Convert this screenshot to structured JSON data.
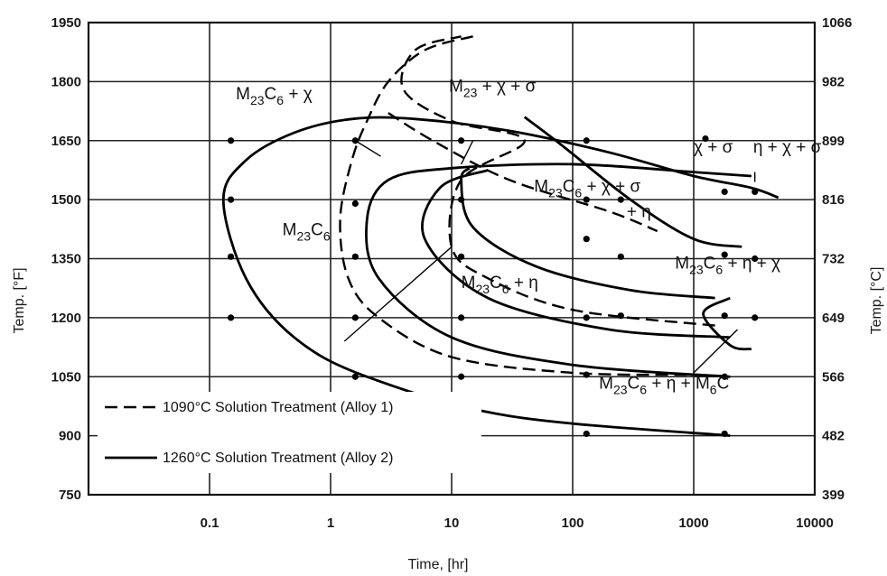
{
  "chart_data": {
    "type": "line",
    "xlabel": "Time, [hr]",
    "ylabel_left": "Temp. [°F]",
    "ylabel_right": "Temp. [°C]",
    "x_scale": "log",
    "xlim": [
      0.01,
      10000
    ],
    "ylim": [
      750,
      1950
    ],
    "x_ticks": [
      {
        "v": 0.1,
        "label": "0.1"
      },
      {
        "v": 1,
        "label": "1"
      },
      {
        "v": 10,
        "label": "10"
      },
      {
        "v": 100,
        "label": "100"
      },
      {
        "v": 1000,
        "label": "1000"
      },
      {
        "v": 10000,
        "label": "10000"
      }
    ],
    "y_ticks_left": [
      {
        "v": 750,
        "label": "750"
      },
      {
        "v": 900,
        "label": "900"
      },
      {
        "v": 1050,
        "label": "1050"
      },
      {
        "v": 1200,
        "label": "1200"
      },
      {
        "v": 1350,
        "label": "1350"
      },
      {
        "v": 1500,
        "label": "1500"
      },
      {
        "v": 1650,
        "label": "1650"
      },
      {
        "v": 1800,
        "label": "1800"
      },
      {
        "v": 1950,
        "label": "1950"
      }
    ],
    "y_ticks_right": [
      {
        "v": 750,
        "label": "399"
      },
      {
        "v": 900,
        "label": "482"
      },
      {
        "v": 1050,
        "label": "566"
      },
      {
        "v": 1200,
        "label": "649"
      },
      {
        "v": 1350,
        "label": "732"
      },
      {
        "v": 1500,
        "label": "816"
      },
      {
        "v": 1650,
        "label": "899"
      },
      {
        "v": 1800,
        "label": "982"
      },
      {
        "v": 1950,
        "label": "1066"
      }
    ],
    "grid": true,
    "legend": {
      "placement": "bottom-left",
      "entries": [
        {
          "style": "dashed",
          "label": "1090°C Solution Treatment (Alloy 1)"
        },
        {
          "style": "solid",
          "label": "1260°C Solution Treatment (Alloy 2)"
        }
      ]
    },
    "region_labels": [
      {
        "main": "M",
        "sub": "23",
        "main2": "C",
        "sub2": "6",
        "tail": " + χ",
        "x": 0.165,
        "y": 1755
      },
      {
        "main": "M",
        "sub": "23",
        "main2": "C",
        "sub2": "6",
        "tail": "",
        "x": 0.4,
        "y": 1410
      },
      {
        "main": "M",
        "sub": "23",
        "main2": "",
        "sub2": "",
        "tail": " + χ + σ",
        "x": 9.5,
        "y": 1775
      },
      {
        "main": "χ + σ",
        "sub": "",
        "main2": "",
        "sub2": "",
        "tail": "",
        "x": 1000,
        "y": 1620
      },
      {
        "main": "η + χ + σ",
        "sub": "",
        "main2": "",
        "sub2": "",
        "tail": "",
        "x": 3100,
        "y": 1620
      },
      {
        "main": "M",
        "sub": "23",
        "main2": "C",
        "sub2": "6",
        "tail": " + χ + σ",
        "x": 48,
        "y": 1520
      },
      {
        "main": "+ η",
        "sub": "",
        "main2": "",
        "sub2": "",
        "tail": "",
        "x": 280,
        "y": 1455
      },
      {
        "main": "M",
        "sub": "23",
        "main2": "C",
        "sub2": "6",
        "tail": " + η + χ",
        "x": 700,
        "y": 1325
      },
      {
        "main": "M",
        "sub": "23",
        "main2": "C",
        "sub2": "6",
        "tail": " + η",
        "x": 12,
        "y": 1275
      },
      {
        "main": "M",
        "sub": "23",
        "main2": "C",
        "sub2": "6",
        "tail": " + η + M",
        "sub3": "6",
        "tail2": "C",
        "x": 165,
        "y": 1020
      }
    ],
    "series": [
      {
        "style": "solid",
        "points": [
          [
            2000,
            900
          ],
          [
            30,
            950
          ],
          [
            2,
            1050
          ],
          [
            0.5,
            1150
          ],
          [
            0.2,
            1300
          ],
          [
            0.13,
            1500
          ],
          [
            0.2,
            1600
          ],
          [
            0.5,
            1670
          ],
          [
            1.5,
            1705
          ],
          [
            5,
            1705
          ],
          [
            30,
            1675
          ],
          [
            200,
            1620
          ],
          [
            1000,
            1560
          ],
          [
            3000,
            1530
          ],
          [
            5000,
            1505
          ]
        ]
      },
      {
        "style": "solid",
        "points": [
          [
            2000,
            1050
          ],
          [
            100,
            1080
          ],
          [
            10,
            1150
          ],
          [
            2.5,
            1300
          ],
          [
            2,
            1450
          ],
          [
            3,
            1550
          ],
          [
            10,
            1580
          ],
          [
            100,
            1590
          ],
          [
            1000,
            1570
          ],
          [
            3000,
            1560
          ]
        ]
      },
      {
        "style": "solid",
        "points": [
          [
            2000,
            1150
          ],
          [
            200,
            1170
          ],
          [
            20,
            1250
          ],
          [
            6,
            1400
          ],
          [
            8,
            1530
          ],
          [
            20,
            1575
          ]
        ]
      },
      {
        "style": "solid",
        "points": [
          [
            40,
            1710
          ],
          [
            80,
            1640
          ],
          [
            300,
            1500
          ],
          [
            1000,
            1400
          ],
          [
            2500,
            1380
          ]
        ]
      },
      {
        "style": "solid",
        "points": [
          [
            1500,
            1250
          ],
          [
            300,
            1270
          ],
          [
            50,
            1330
          ],
          [
            15,
            1430
          ],
          [
            12,
            1550
          ],
          [
            14,
            1580
          ]
        ]
      },
      {
        "style": "solid",
        "points": [
          [
            2000,
            1250
          ],
          [
            1200,
            1210
          ],
          [
            2000,
            1130
          ],
          [
            3000,
            1120
          ]
        ]
      },
      {
        "style": "dashed",
        "points": [
          [
            15,
            1915
          ],
          [
            6,
            1880
          ],
          [
            3,
            1800
          ],
          [
            2,
            1700
          ],
          [
            1.5,
            1600
          ],
          [
            1.2,
            1450
          ],
          [
            1.4,
            1300
          ],
          [
            2.5,
            1200
          ],
          [
            10,
            1100
          ],
          [
            100,
            1060
          ],
          [
            1000,
            1055
          ]
        ]
      },
      {
        "style": "dashed",
        "points": [
          [
            3,
            1720
          ],
          [
            7,
            1650
          ],
          [
            30,
            1550
          ],
          [
            200,
            1470
          ],
          [
            500,
            1420
          ]
        ]
      },
      {
        "style": "dashed",
        "points": [
          [
            1500,
            1180
          ],
          [
            100,
            1220
          ],
          [
            20,
            1300
          ],
          [
            10,
            1380
          ],
          [
            12,
            1550
          ],
          [
            40,
            1650
          ],
          [
            10,
            1700
          ],
          [
            4,
            1780
          ],
          [
            5,
            1880
          ],
          [
            12,
            1915
          ]
        ]
      }
    ],
    "points": [
      [
        0.15,
        1650
      ],
      [
        0.15,
        1500
      ],
      [
        0.15,
        1355
      ],
      [
        0.15,
        1200
      ],
      [
        1.6,
        1650
      ],
      [
        1.6,
        1490
      ],
      [
        1.6,
        1355
      ],
      [
        1.6,
        1200
      ],
      [
        1.6,
        1050
      ],
      [
        12,
        1650
      ],
      [
        12,
        1500
      ],
      [
        12,
        1355
      ],
      [
        12,
        1200
      ],
      [
        12,
        1050
      ],
      [
        12,
        905
      ],
      [
        130,
        1650
      ],
      [
        130,
        1500
      ],
      [
        130,
        1400
      ],
      [
        130,
        1200
      ],
      [
        130,
        1055
      ],
      [
        130,
        905
      ],
      [
        250,
        1500
      ],
      [
        250,
        1355
      ],
      [
        250,
        1205
      ],
      [
        1250,
        1655
      ],
      [
        1800,
        1520
      ],
      [
        1800,
        1360
      ],
      [
        1800,
        1205
      ],
      [
        1800,
        1050
      ],
      [
        1800,
        905
      ],
      [
        3200,
        1520
      ],
      [
        3200,
        1350
      ],
      [
        3200,
        1200
      ]
    ],
    "leaders": [
      [
        [
          1.6,
          1650
        ],
        [
          2.6,
          1610
        ]
      ],
      [
        [
          15,
          1650
        ],
        [
          12,
          1590
        ]
      ],
      [
        [
          1.3,
          1140
        ],
        [
          10,
          1380
        ]
      ],
      [
        [
          1000,
          1060
        ],
        [
          2300,
          1170
        ]
      ],
      [
        [
          3200,
          1545
        ],
        [
          3200,
          1570
        ]
      ]
    ]
  }
}
